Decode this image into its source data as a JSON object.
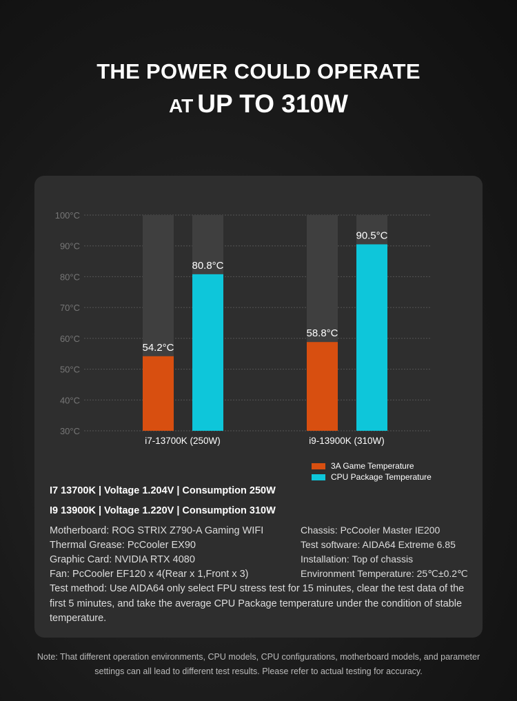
{
  "header": {
    "line1": "THE POWER COULD OPERATE",
    "line2_prefix": "AT",
    "line2_main": "UP TO 310W"
  },
  "chart_data": {
    "type": "bar",
    "categories": [
      "i7-13700K  (250W)",
      "i9-13900K  (310W)"
    ],
    "series": [
      {
        "name": "3A Game Temperature",
        "color": "#d84f10",
        "values": [
          54.2,
          58.8
        ],
        "labels": [
          "54.2°C",
          "58.8°C"
        ]
      },
      {
        "name": "CPU Package Temperature",
        "color": "#0ec6da",
        "values": [
          80.8,
          90.5
        ],
        "labels": [
          "80.8°C",
          "90.5°C"
        ]
      }
    ],
    "ylim": [
      30,
      100
    ],
    "yticks": [
      "30°C",
      "40°C",
      "50°C",
      "60°C",
      "70°C",
      "80°C",
      "90°C",
      "100°C"
    ],
    "grid": true,
    "legend": "bottom-right"
  },
  "specs": [
    "I7 13700K | Voltage 1.204V | Consumption 250W",
    "I9 13900K | Voltage 1.220V | Consumption 310W"
  ],
  "info_left": [
    "Motherboard: ROG STRIX Z790-A Gaming WIFI",
    "Thermal Grease: PcCooler EX90",
    "Graphic Card: NVIDIA RTX 4080",
    "Fan: PcCooler EF120 x 4(Rear x 1,Front x 3)"
  ],
  "info_right": [
    "Chassis: PcCooler Master IE200",
    "Test software: AIDA64 Extreme 6.85",
    "Installation: Top of chassis",
    "Environment Temperature: 25℃±0.2℃"
  ],
  "method": "Test method: Use AIDA64 only select FPU stress test for 15 minutes, clear the test data of the first 5 minutes, and take the average CPU Package temperature under the condition of stable temperature.",
  "note": "Note: That different operation environments, CPU models, CPU configurations, motherboard models, and parameter settings can all lead to different test results. Please refer to actual testing for accuracy."
}
